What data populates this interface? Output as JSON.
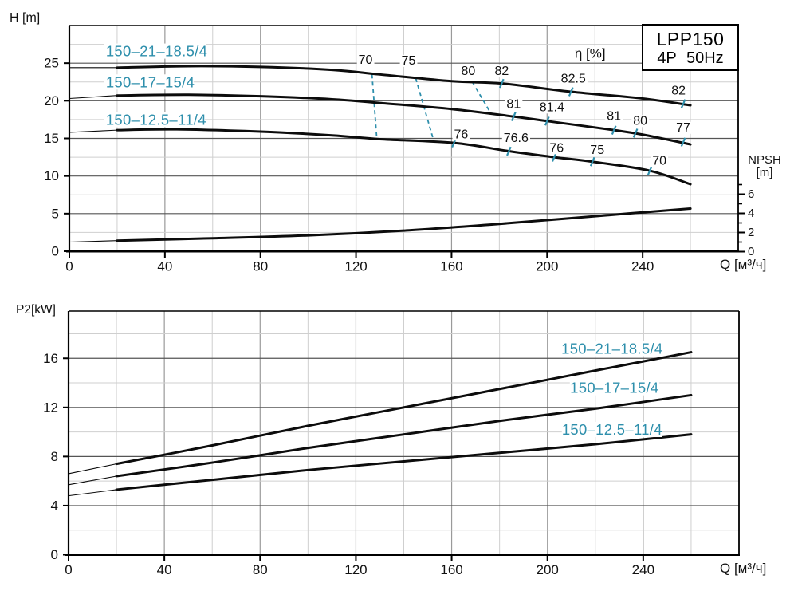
{
  "colors": {
    "teal": "#2e8fac",
    "curve": "#0c0c0c",
    "grid_minor": "#cfcfcf",
    "grid_major_v": "#9a9a9a",
    "grid_major_h": "#555555",
    "frame": "#000000",
    "text": "#111111"
  },
  "title_box": {
    "line1": "LPP150",
    "line2": "4P 50Hz"
  },
  "chart_data": [
    {
      "id": "head-chart",
      "type": "line",
      "title": "Pump head curves",
      "ylabel": "H [m]",
      "xlabel": "Q [м³/ч]",
      "xlim": [
        0,
        280
      ],
      "ylim": [
        0,
        30
      ],
      "xticks": [
        0,
        40,
        80,
        120,
        160,
        200,
        240
      ],
      "yticks": [
        0,
        5,
        10,
        15,
        20,
        25
      ],
      "x_minor_step": 20,
      "y_minor_step": 2.5,
      "grid": true,
      "legend_position": "on-curve-labels",
      "right_axis": {
        "title": "NPSH",
        "unit": "[m]",
        "ticks": [
          0,
          2,
          4,
          6
        ],
        "minor_ticks": [
          1,
          3,
          5,
          7
        ]
      },
      "series": [
        {
          "name": "150–21–18.5/4",
          "label_pos": [
            15.3,
            26.6
          ],
          "label_anchor": "start",
          "thin_until": 20,
          "points": [
            [
              0,
              24.4
            ],
            [
              20,
              24.4
            ],
            [
              50,
              24.6
            ],
            [
              80,
              24.5
            ],
            [
              110,
              24.1
            ],
            [
              130,
              23.5
            ],
            [
              160,
              22.6
            ],
            [
              181,
              22.3
            ],
            [
              210,
              21.2
            ],
            [
              240,
              20.3
            ],
            [
              260,
              19.4
            ]
          ]
        },
        {
          "name": "150–17–15/4",
          "label_pos": [
            15.3,
            22.5
          ],
          "label_anchor": "start",
          "thin_until": 20,
          "points": [
            [
              0,
              20.3
            ],
            [
              20,
              20.7
            ],
            [
              50,
              20.8
            ],
            [
              80,
              20.6
            ],
            [
              110,
              20.2
            ],
            [
              130,
              19.7
            ],
            [
              160,
              18.9
            ],
            [
              186,
              17.9
            ],
            [
              200,
              17.3
            ],
            [
              228,
              16.1
            ],
            [
              240,
              15.5
            ],
            [
              260,
              14.2
            ]
          ]
        },
        {
          "name": "150–12.5–11/4",
          "label_pos": [
            15.3,
            17.5
          ],
          "label_anchor": "start",
          "thin_until": 20,
          "points": [
            [
              0,
              15.8
            ],
            [
              20,
              16.1
            ],
            [
              45,
              16.2
            ],
            [
              80,
              15.9
            ],
            [
              110,
              15.4
            ],
            [
              130,
              14.9
            ],
            [
              161,
              14.4
            ],
            [
              184,
              13.3
            ],
            [
              203,
              12.5
            ],
            [
              219,
              11.9
            ],
            [
              243,
              10.7
            ],
            [
              260,
              8.9
            ]
          ]
        },
        {
          "name": "NPSH",
          "axis": "right",
          "thin_until": 20,
          "points": [
            [
              0,
              1.0
            ],
            [
              20,
              1.15
            ],
            [
              60,
              1.4
            ],
            [
              100,
              1.7
            ],
            [
              140,
              2.2
            ],
            [
              180,
              2.9
            ],
            [
              220,
              3.7
            ],
            [
              260,
              4.5
            ]
          ]
        }
      ],
      "efficiency": {
        "axis_label": "η [%]",
        "axis_label_pos": [
          218,
          26.3
        ],
        "dashed_lines": [
          {
            "value": "70",
            "from": [
              126.7,
              23.5
            ],
            "to": [
              128.7,
              15.0
            ]
          },
          {
            "value": "75",
            "from": [
              145.0,
              23.0
            ],
            "to": [
              152.7,
              14.5
            ]
          },
          {
            "value": "80",
            "from": [
              168.7,
              22.5
            ],
            "to": [
              176.7,
              18.2
            ]
          }
        ],
        "tick_marks": [
          {
            "q": 181,
            "h": 22.3
          },
          {
            "q": 210,
            "h": 21.2
          },
          {
            "q": 257,
            "h": 19.6
          },
          {
            "q": 186,
            "h": 17.9
          },
          {
            "q": 200,
            "h": 17.3
          },
          {
            "q": 228,
            "h": 16.1
          },
          {
            "q": 237,
            "h": 15.7
          },
          {
            "q": 257,
            "h": 14.5
          },
          {
            "q": 161,
            "h": 14.4
          },
          {
            "q": 184,
            "h": 13.3
          },
          {
            "q": 203,
            "h": 12.5
          },
          {
            "q": 219,
            "h": 11.9
          },
          {
            "q": 243,
            "h": 10.7
          }
        ],
        "labels": [
          {
            "text": "70",
            "pos": [
              124,
              25.4
            ]
          },
          {
            "text": "75",
            "pos": [
              142,
              25.3
            ]
          },
          {
            "text": "80",
            "pos": [
              167,
              23.9
            ]
          },
          {
            "text": "82",
            "pos": [
              181,
              23.9
            ]
          },
          {
            "text": "82.5",
            "pos": [
              211,
              22.9
            ]
          },
          {
            "text": "82",
            "pos": [
              255,
              21.3
            ]
          },
          {
            "text": "81",
            "pos": [
              186,
              19.5
            ]
          },
          {
            "text": "81.4",
            "pos": [
              202,
              19.1
            ]
          },
          {
            "text": "81",
            "pos": [
              228,
              17.9
            ]
          },
          {
            "text": "80",
            "pos": [
              239,
              17.3
            ]
          },
          {
            "text": "77",
            "pos": [
              257,
              16.4
            ]
          },
          {
            "text": "76",
            "pos": [
              164,
              15.5
            ]
          },
          {
            "text": "76.6",
            "pos": [
              187,
              15.0
            ]
          },
          {
            "text": "76",
            "pos": [
              204,
              13.7
            ]
          },
          {
            "text": "75",
            "pos": [
              221,
              13.4
            ]
          },
          {
            "text": "70",
            "pos": [
              247,
              12.0
            ]
          }
        ]
      }
    },
    {
      "id": "power-chart",
      "type": "line",
      "title": "Shaft power curves",
      "ylabel": "P2[kW]",
      "xlabel": "Q [м³/ч]",
      "xlim": [
        0,
        280
      ],
      "ylim": [
        0,
        19.85
      ],
      "xticks": [
        0,
        40,
        80,
        120,
        160,
        200,
        240
      ],
      "yticks": [
        0,
        4,
        8,
        12,
        16
      ],
      "x_minor_step": 20,
      "y_minor_step": 2,
      "grid": true,
      "series": [
        {
          "name": "150–21–18.5/4",
          "label_pos": [
            227,
            16.8
          ],
          "label_anchor": "middle",
          "thin_until": 20,
          "points": [
            [
              0,
              6.6
            ],
            [
              20,
              7.4
            ],
            [
              60,
              8.9
            ],
            [
              100,
              10.5
            ],
            [
              140,
              12.0
            ],
            [
              180,
              13.5
            ],
            [
              220,
              15.0
            ],
            [
              260,
              16.5
            ]
          ]
        },
        {
          "name": "150–17–15/4",
          "label_pos": [
            228,
            13.6
          ],
          "label_anchor": "middle",
          "thin_until": 20,
          "points": [
            [
              0,
              5.7
            ],
            [
              20,
              6.4
            ],
            [
              60,
              7.5
            ],
            [
              100,
              8.7
            ],
            [
              140,
              9.8
            ],
            [
              180,
              10.9
            ],
            [
              220,
              11.9
            ],
            [
              260,
              13.0
            ]
          ]
        },
        {
          "name": "150–12.5–11/4",
          "label_pos": [
            227,
            10.2
          ],
          "label_anchor": "middle",
          "thin_until": 20,
          "points": [
            [
              0,
              4.8
            ],
            [
              20,
              5.3
            ],
            [
              60,
              6.1
            ],
            [
              100,
              6.9
            ],
            [
              140,
              7.6
            ],
            [
              180,
              8.3
            ],
            [
              220,
              9.0
            ],
            [
              260,
              9.8
            ]
          ]
        }
      ]
    }
  ]
}
